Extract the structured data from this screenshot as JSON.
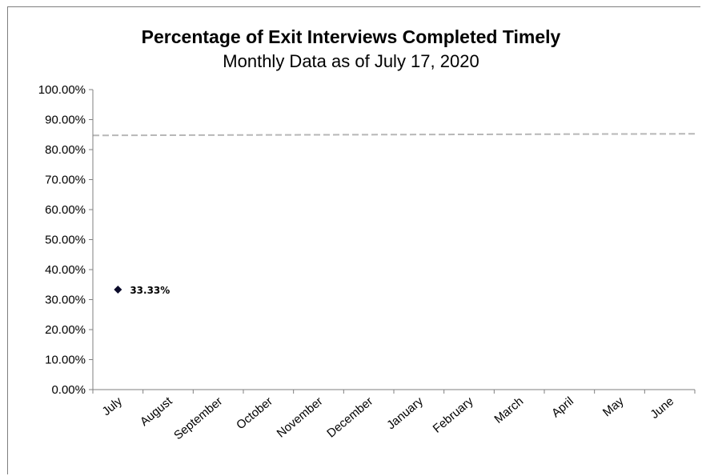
{
  "chart_data": {
    "type": "scatter",
    "title": "Percentage of Exit Interviews Completed Timely",
    "subtitle": "Monthly Data as of July 17, 2020",
    "categories": [
      "July",
      "August",
      "September",
      "October",
      "November",
      "December",
      "January",
      "February",
      "March",
      "April",
      "May",
      "June"
    ],
    "series": [
      {
        "values": [
          0.3333,
          null,
          null,
          null,
          null,
          null,
          null,
          null,
          null,
          null,
          null,
          null
        ],
        "marker": "diamond",
        "color": "#0a0a2a"
      }
    ],
    "data_labels": [
      "33.33%"
    ],
    "target_line": {
      "value": 0.85,
      "style": "dashed",
      "color": "#b7b7b7"
    },
    "yticks": [
      "0.00%",
      "10.00%",
      "20.00%",
      "30.00%",
      "40.00%",
      "50.00%",
      "60.00%",
      "70.00%",
      "80.00%",
      "90.00%",
      "100.00%"
    ],
    "ylim": [
      0,
      1
    ],
    "grid": false,
    "legend": "none"
  }
}
